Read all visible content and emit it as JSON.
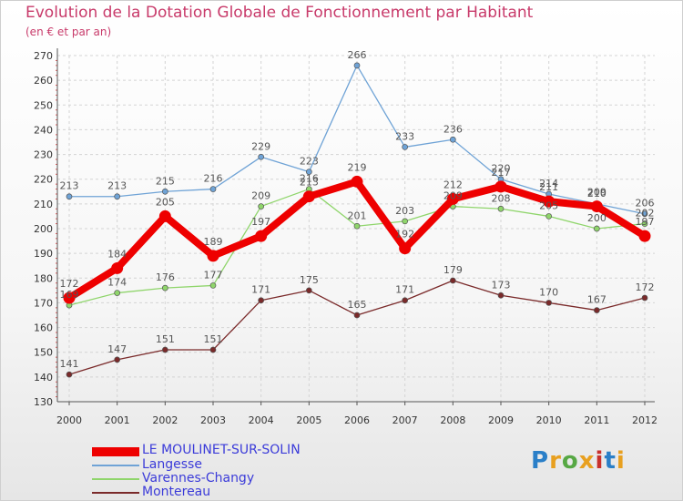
{
  "header": {
    "title": "Evolution de la Dotation Globale de Fonctionnement par Habitant",
    "subtitle": "(en € et par an)"
  },
  "logo": {
    "text": "Proxiti",
    "colors": [
      "#2a7fc8",
      "#e8a020",
      "#57a844",
      "#e8a020",
      "#c8302c",
      "#2a7fc8",
      "#e8a020"
    ]
  },
  "chart_data": {
    "type": "line",
    "x": [
      2000,
      2001,
      2002,
      2003,
      2004,
      2005,
      2006,
      2007,
      2008,
      2009,
      2010,
      2011,
      2012
    ],
    "ylim": [
      130,
      270
    ],
    "yticks": [
      130,
      140,
      150,
      160,
      170,
      180,
      190,
      200,
      210,
      220,
      230,
      240,
      250,
      260,
      270
    ],
    "grid": true,
    "legend_position": "bottom-left",
    "series": [
      {
        "name": "LE MOULINET-SUR-SOLIN",
        "color": "#ee0000",
        "values": [
          172,
          184,
          205,
          189,
          197,
          213,
          219,
          192,
          212,
          217,
          211,
          209,
          197
        ]
      },
      {
        "name": "Langesse",
        "color": "#6fa3d6",
        "values": [
          213,
          213,
          215,
          216,
          229,
          223,
          266,
          233,
          236,
          220,
          214,
          210,
          206
        ]
      },
      {
        "name": "Varennes-Changy",
        "color": "#8fd56b",
        "values": [
          169,
          174,
          176,
          177,
          209,
          216,
          201,
          203,
          209,
          208,
          205,
          200,
          202
        ]
      },
      {
        "name": "Montereau",
        "color": "#7a2a2a",
        "values": [
          141,
          147,
          151,
          151,
          171,
          175,
          165,
          171,
          179,
          173,
          170,
          167,
          172
        ]
      }
    ]
  }
}
